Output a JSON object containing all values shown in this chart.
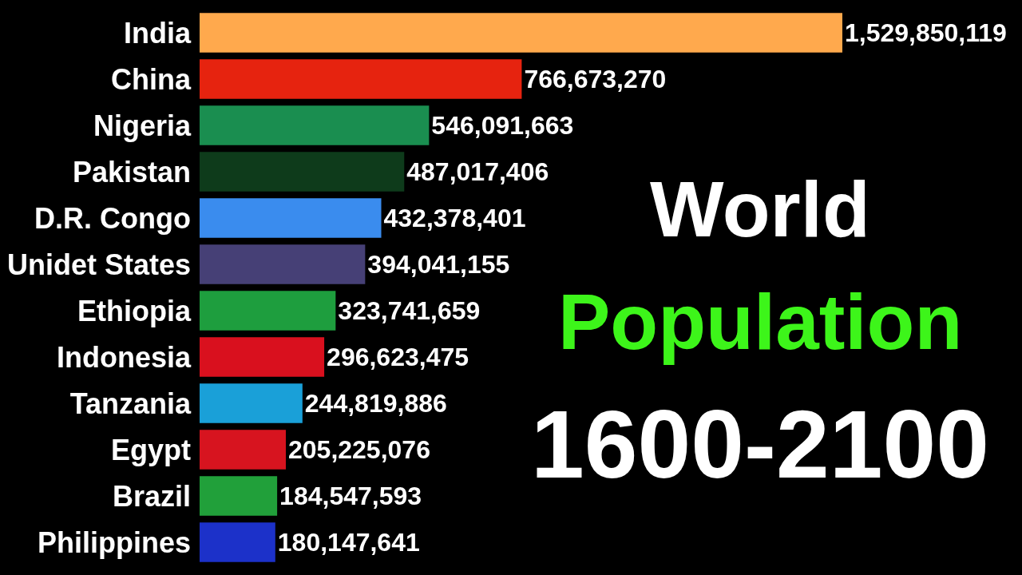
{
  "chart_data": {
    "type": "bar",
    "orientation": "horizontal",
    "title": "World Population",
    "subtitle": "1600-2100",
    "categories": [
      "India",
      "China",
      "Nigeria",
      "Pakistan",
      "D.R. Congo",
      "Unidet States",
      "Ethiopia",
      "Indonesia",
      "Tanzania",
      "Egypt",
      "Brazil",
      "Philippines"
    ],
    "values": [
      1529850119,
      766673270,
      546091663,
      487017406,
      432378401,
      394041155,
      323741659,
      296623475,
      244819886,
      205225076,
      184547593,
      180147641
    ],
    "value_labels": [
      "1,529,850,119",
      "766,673,270",
      "546,091,663",
      "487,017,406",
      "432,378,401",
      "394,041,155",
      "323,741,659",
      "296,623,475",
      "244,819,886",
      "205,225,076",
      "184,547,593",
      "180,147,641"
    ],
    "colors": [
      "#ffa94d",
      "#e6230f",
      "#1a8e50",
      "#0e3b1b",
      "#3a8cee",
      "#464076",
      "#1e9e3e",
      "#d9101e",
      "#1aa0d8",
      "#d7141f",
      "#21a03a",
      "#1c31c9"
    ],
    "tick_labels": "y"
  }
}
